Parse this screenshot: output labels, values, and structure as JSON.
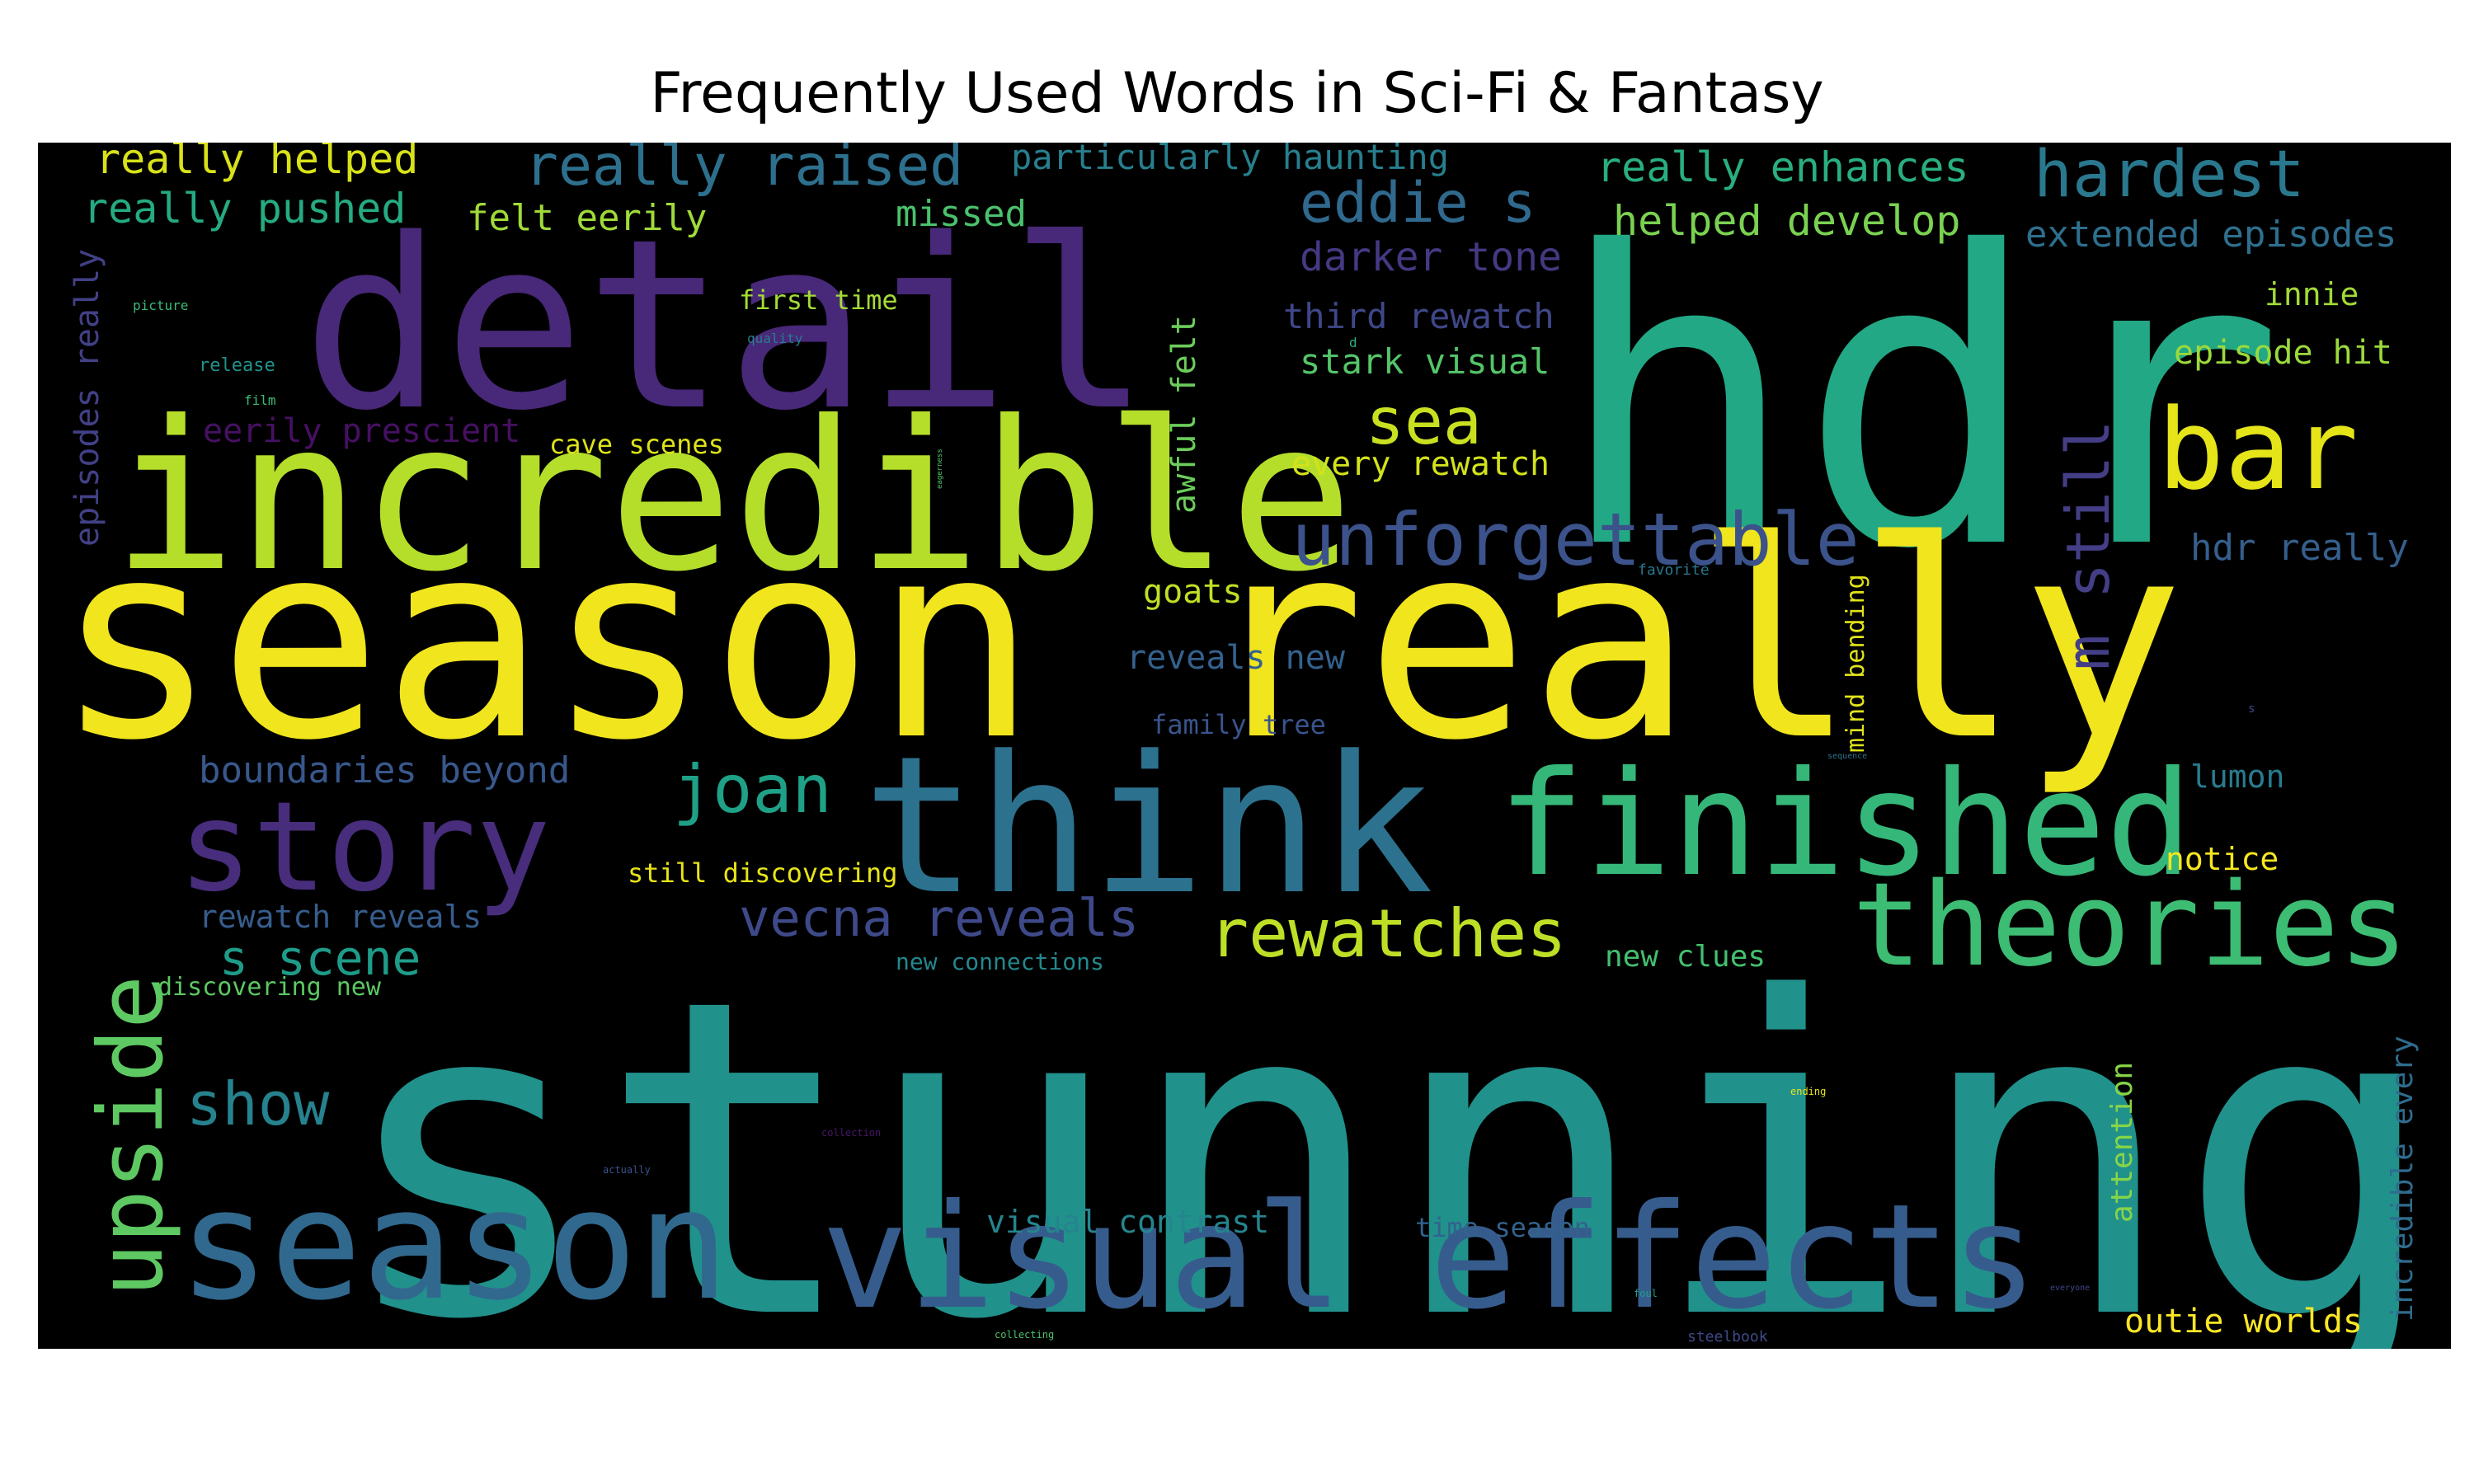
{
  "title": "Frequently Used Words in Sci-Fi & Fantasy",
  "chart_data": {
    "type": "wordcloud",
    "title": "Frequently Used Words in Sci-Fi & Fantasy",
    "background": "#000000",
    "colormap": "viridis",
    "words": [
      {
        "text": "stunning",
        "color": "#21918c"
      },
      {
        "text": "hdr",
        "color": "#22a884"
      },
      {
        "text": "season really",
        "color": "#f1e51d"
      },
      {
        "text": "detail",
        "color": "#482878"
      },
      {
        "text": "incredible",
        "color": "#b5de2b"
      },
      {
        "text": "think",
        "color": "#2c728e"
      },
      {
        "text": "finished",
        "color": "#35b779"
      },
      {
        "text": "theories",
        "color": "#3dbc74"
      },
      {
        "text": "season",
        "color": "#31688e"
      },
      {
        "text": "visual effects",
        "color": "#365c8d"
      },
      {
        "text": "story",
        "color": "#472d7b"
      },
      {
        "text": "upside",
        "color": "#5ec962"
      },
      {
        "text": "bar",
        "color": "#e5e419"
      },
      {
        "text": "m still",
        "color": "#433e85"
      },
      {
        "text": "unforgettable",
        "color": "#3b528b"
      },
      {
        "text": "joan",
        "color": "#1fa187"
      },
      {
        "text": "rewatches",
        "color": "#bddf26"
      },
      {
        "text": "sea",
        "color": "#c8e020"
      },
      {
        "text": "eddie s",
        "color": "#30698e"
      },
      {
        "text": "hardest",
        "color": "#2a788e"
      },
      {
        "text": "really raised",
        "color": "#2d708e"
      },
      {
        "text": "vecna reveals",
        "color": "#3e4989"
      },
      {
        "text": "show",
        "color": "#26828e"
      },
      {
        "text": "s scene",
        "color": "#1e9c89"
      },
      {
        "text": "really helped",
        "color": "#d8e219"
      },
      {
        "text": "really pushed",
        "color": "#25ab82"
      },
      {
        "text": "felt eerily",
        "color": "#a0da39"
      },
      {
        "text": "missed",
        "color": "#4ac16d"
      },
      {
        "text": "particularly haunting",
        "color": "#277f8e"
      },
      {
        "text": "really enhances",
        "color": "#29af7f"
      },
      {
        "text": "helped develop",
        "color": "#7ad151"
      },
      {
        "text": "extended episodes",
        "color": "#2e6f8e"
      },
      {
        "text": "darker tone",
        "color": "#443983"
      },
      {
        "text": "third rewatch",
        "color": "#3f4788"
      },
      {
        "text": "stark visual",
        "color": "#54c568"
      },
      {
        "text": "every rewatch",
        "color": "#d2e21b"
      },
      {
        "text": "cave scenes",
        "color": "#dde318"
      },
      {
        "text": "eerily prescient",
        "color": "#471063"
      },
      {
        "text": "episodes really",
        "color": "#424086"
      },
      {
        "text": "first time",
        "color": "#a5db36"
      },
      {
        "text": "awful felt",
        "color": "#6ccd5a"
      },
      {
        "text": "innie",
        "color": "#a2da37"
      },
      {
        "text": "episode hit",
        "color": "#9bd93c"
      },
      {
        "text": "hdr really",
        "color": "#355f8d"
      },
      {
        "text": "goats",
        "color": "#c0df25"
      },
      {
        "text": "reveals new",
        "color": "#34618d"
      },
      {
        "text": "family tree",
        "color": "#3a548c"
      },
      {
        "text": "mind bending",
        "color": "#e2e418"
      },
      {
        "text": "lumon",
        "color": "#287c8e"
      },
      {
        "text": "notice",
        "color": "#f6e620"
      },
      {
        "text": "boundaries beyond",
        "color": "#38588c"
      },
      {
        "text": "still discovering",
        "color": "#e7e419"
      },
      {
        "text": "rewatch reveals",
        "color": "#365d8d"
      },
      {
        "text": "new connections",
        "color": "#23888e"
      },
      {
        "text": "new clues",
        "color": "#44bf70"
      },
      {
        "text": "discovering new",
        "color": "#5cc863"
      },
      {
        "text": "visual contrast",
        "color": "#25858e"
      },
      {
        "text": "time season",
        "color": "#33628d"
      },
      {
        "text": "attention",
        "color": "#86d549"
      },
      {
        "text": "incredible every",
        "color": "#2f6c8e"
      },
      {
        "text": "outie worlds",
        "color": "#fde725"
      },
      {
        "text": "release",
        "color": "#20928c"
      },
      {
        "text": "picture",
        "color": "#3aba76"
      },
      {
        "text": "film",
        "color": "#3fbc73"
      },
      {
        "text": "quality",
        "color": "#287d8e"
      },
      {
        "text": "favorite",
        "color": "#2a768e"
      },
      {
        "text": "steelbook",
        "color": "#3e4a89"
      },
      {
        "text": "collecting",
        "color": "#4ec36b"
      },
      {
        "text": "ending",
        "color": "#e8e419"
      },
      {
        "text": "collection",
        "color": "#48186a"
      },
      {
        "text": "actually",
        "color": "#3b518b"
      },
      {
        "text": "sequence",
        "color": "#2d718e"
      },
      {
        "text": "everyone",
        "color": "#404688"
      },
      {
        "text": "foul",
        "color": "#1f9e89"
      },
      {
        "text": "d",
        "color": "#2ab07f"
      },
      {
        "text": "s",
        "color": "#414487"
      },
      {
        "text": "eagerness",
        "color": "#4cc26c"
      }
    ]
  }
}
